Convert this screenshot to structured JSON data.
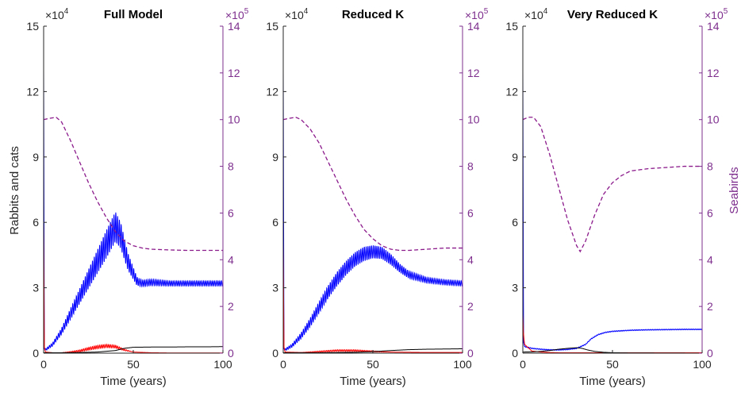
{
  "figure": {
    "ylabel_left": "Rabbits and cats",
    "ylabel_right": "Seabirds",
    "colors": {
      "rabbits": "#0000ff",
      "cats": "#ff0000",
      "third": "#000000",
      "seabirds": "#8b1a8b",
      "axis_right": "#7e2f8e"
    }
  },
  "chart_data": [
    {
      "type": "line",
      "title": "Full Model",
      "xlabel": "Time (years)",
      "xlim": [
        0,
        100
      ],
      "xticks": [
        "0",
        "50",
        "100"
      ],
      "left_axis": {
        "multiplier": "×10",
        "exponent": "4",
        "ylim": [
          0,
          15
        ],
        "ticks": [
          "0",
          "3",
          "6",
          "9",
          "12",
          "15"
        ]
      },
      "right_axis": {
        "multiplier": "×10",
        "exponent": "5",
        "ylim": [
          0,
          14
        ],
        "ticks": [
          "0",
          "2",
          "4",
          "6",
          "8",
          "10",
          "12",
          "14"
        ]
      },
      "series": [
        {
          "id": "rabbits",
          "axis": "left",
          "x": [
            0,
            0.4,
            1,
            5,
            10,
            15,
            20,
            25,
            30,
            35,
            40,
            43,
            47,
            52,
            55,
            60,
            70,
            80,
            90,
            100
          ],
          "values": [
            13,
            0.2,
            0.15,
            0.4,
            1.0,
            1.8,
            2.6,
            3.4,
            4.2,
            5.0,
            5.8,
            5.4,
            4.2,
            3.3,
            3.2,
            3.25,
            3.2,
            3.2,
            3.2,
            3.2
          ],
          "amplitude": [
            0,
            0,
            0.05,
            0.08,
            0.15,
            0.25,
            0.35,
            0.45,
            0.55,
            0.65,
            0.7,
            0.6,
            0.4,
            0.2,
            0.15,
            0.15,
            0.12,
            0.12,
            0.12,
            0.12
          ]
        },
        {
          "id": "cats",
          "axis": "left",
          "x": [
            0,
            0.4,
            1,
            5,
            10,
            15,
            20,
            25,
            30,
            35,
            40,
            45,
            50,
            60,
            70,
            80,
            90,
            100
          ],
          "values": [
            6,
            0.3,
            0.05,
            0.02,
            0.02,
            0.05,
            0.1,
            0.2,
            0.28,
            0.33,
            0.3,
            0.15,
            0.05,
            0.02,
            0.01,
            0.01,
            0.01,
            0.01
          ],
          "amplitude": [
            0,
            0,
            0,
            0,
            0,
            0.03,
            0.05,
            0.07,
            0.08,
            0.08,
            0.07,
            0.04,
            0,
            0,
            0,
            0,
            0,
            0
          ]
        },
        {
          "id": "third",
          "axis": "left",
          "x": [
            0,
            10,
            20,
            30,
            40,
            45,
            50,
            60,
            70,
            80,
            90,
            100
          ],
          "values": [
            0.02,
            0.02,
            0.03,
            0.05,
            0.12,
            0.22,
            0.27,
            0.28,
            0.28,
            0.29,
            0.29,
            0.3
          ]
        },
        {
          "id": "seabirds",
          "axis": "right",
          "dash": true,
          "x": [
            0,
            3,
            7,
            10,
            15,
            20,
            25,
            30,
            35,
            40,
            45,
            50,
            55,
            60,
            70,
            80,
            90,
            100
          ],
          "values": [
            10.0,
            10.05,
            10.1,
            9.9,
            9.1,
            8.2,
            7.3,
            6.5,
            5.8,
            5.2,
            4.8,
            4.6,
            4.5,
            4.45,
            4.42,
            4.4,
            4.4,
            4.4
          ]
        }
      ]
    },
    {
      "type": "line",
      "title": "Reduced K",
      "xlabel": "Time (years)",
      "xlim": [
        0,
        100
      ],
      "xticks": [
        "0",
        "50",
        "100"
      ],
      "left_axis": {
        "multiplier": "×10",
        "exponent": "4",
        "ylim": [
          0,
          15
        ],
        "ticks": [
          "0",
          "3",
          "6",
          "9",
          "12",
          "15"
        ]
      },
      "right_axis": {
        "multiplier": "×10",
        "exponent": "5",
        "ylim": [
          0,
          14
        ],
        "ticks": [
          "0",
          "2",
          "4",
          "6",
          "8",
          "10",
          "12",
          "14"
        ]
      },
      "series": [
        {
          "id": "rabbits",
          "axis": "left",
          "x": [
            0,
            0.4,
            1,
            5,
            10,
            15,
            20,
            25,
            30,
            35,
            40,
            45,
            50,
            55,
            60,
            65,
            70,
            80,
            90,
            100
          ],
          "values": [
            13,
            0.2,
            0.15,
            0.35,
            0.8,
            1.4,
            2.1,
            2.8,
            3.4,
            3.9,
            4.3,
            4.55,
            4.65,
            4.6,
            4.3,
            3.9,
            3.6,
            3.35,
            3.25,
            3.2
          ],
          "amplitude": [
            0,
            0,
            0.05,
            0.08,
            0.14,
            0.2,
            0.26,
            0.3,
            0.33,
            0.33,
            0.33,
            0.33,
            0.3,
            0.28,
            0.25,
            0.2,
            0.17,
            0.13,
            0.12,
            0.12
          ]
        },
        {
          "id": "cats",
          "axis": "left",
          "x": [
            0,
            0.4,
            1,
            10,
            20,
            30,
            40,
            50,
            60,
            70,
            80,
            90,
            100
          ],
          "values": [
            5.1,
            0.3,
            0.05,
            0.03,
            0.07,
            0.12,
            0.12,
            0.08,
            0.05,
            0.04,
            0.03,
            0.03,
            0.03
          ],
          "amplitude": [
            0,
            0,
            0,
            0,
            0.03,
            0.04,
            0.04,
            0.03,
            0,
            0,
            0,
            0,
            0
          ]
        },
        {
          "id": "third",
          "axis": "left",
          "x": [
            0,
            10,
            20,
            30,
            40,
            50,
            60,
            70,
            80,
            90,
            100
          ],
          "values": [
            0.02,
            0.02,
            0.02,
            0.03,
            0.04,
            0.07,
            0.12,
            0.16,
            0.18,
            0.19,
            0.2
          ]
        },
        {
          "id": "seabirds",
          "axis": "right",
          "dash": true,
          "x": [
            0,
            3,
            7,
            10,
            15,
            20,
            25,
            30,
            35,
            40,
            45,
            50,
            55,
            60,
            65,
            70,
            80,
            90,
            100
          ],
          "values": [
            10.0,
            10.05,
            10.1,
            10.0,
            9.6,
            9.0,
            8.2,
            7.4,
            6.6,
            5.9,
            5.3,
            4.9,
            4.6,
            4.45,
            4.4,
            4.4,
            4.45,
            4.5,
            4.5
          ]
        }
      ]
    },
    {
      "type": "line",
      "title": "Very Reduced K",
      "xlabel": "Time (years)",
      "xlim": [
        0,
        100
      ],
      "xticks": [
        "0",
        "50",
        "100"
      ],
      "left_axis": {
        "multiplier": "×10",
        "exponent": "4",
        "ylim": [
          0,
          15
        ],
        "ticks": [
          "0",
          "3",
          "6",
          "9",
          "12",
          "15"
        ]
      },
      "right_axis": {
        "multiplier": "×10",
        "exponent": "5",
        "ylim": [
          0,
          14
        ],
        "ticks": [
          "0",
          "2",
          "4",
          "6",
          "8",
          "10",
          "12",
          "14"
        ]
      },
      "series": [
        {
          "id": "rabbits",
          "axis": "left",
          "x": [
            0,
            0.4,
            1,
            5,
            10,
            15,
            20,
            25,
            30,
            35,
            38,
            42,
            46,
            50,
            60,
            70,
            80,
            90,
            100
          ],
          "values": [
            13,
            0.5,
            0.3,
            0.22,
            0.18,
            0.15,
            0.15,
            0.17,
            0.22,
            0.4,
            0.65,
            0.85,
            0.95,
            1.0,
            1.05,
            1.07,
            1.08,
            1.09,
            1.09
          ],
          "amplitude": [
            0,
            0,
            0.02,
            0.02,
            0.02,
            0.02,
            0.02,
            0.02,
            0.02,
            0.02,
            0.02,
            0.02,
            0.02,
            0.02,
            0.02,
            0.02,
            0.02,
            0.02,
            0.02
          ]
        },
        {
          "id": "cats",
          "axis": "left",
          "x": [
            0,
            0.4,
            1,
            5,
            10,
            15,
            20,
            30,
            40,
            50,
            100
          ],
          "values": [
            1.8,
            0.8,
            0.4,
            0.1,
            0.05,
            0.03,
            0.02,
            0.02,
            0.02,
            0.02,
            0.02
          ]
        },
        {
          "id": "third",
          "axis": "left",
          "x": [
            0,
            5,
            10,
            15,
            20,
            25,
            30,
            33,
            36,
            40,
            45,
            50,
            60,
            100
          ],
          "values": [
            0.05,
            0.06,
            0.08,
            0.12,
            0.18,
            0.22,
            0.25,
            0.22,
            0.15,
            0.08,
            0.04,
            0.02,
            0.01,
            0.0
          ]
        },
        {
          "id": "seabirds",
          "axis": "right",
          "dash": true,
          "x": [
            0,
            3,
            6,
            10,
            15,
            20,
            25,
            30,
            32,
            35,
            40,
            45,
            50,
            55,
            60,
            70,
            80,
            90,
            100
          ],
          "values": [
            10.0,
            10.1,
            10.1,
            9.7,
            8.5,
            7.1,
            5.7,
            4.6,
            4.35,
            4.8,
            5.9,
            6.8,
            7.3,
            7.6,
            7.8,
            7.9,
            7.95,
            8.0,
            8.0
          ]
        }
      ]
    }
  ]
}
